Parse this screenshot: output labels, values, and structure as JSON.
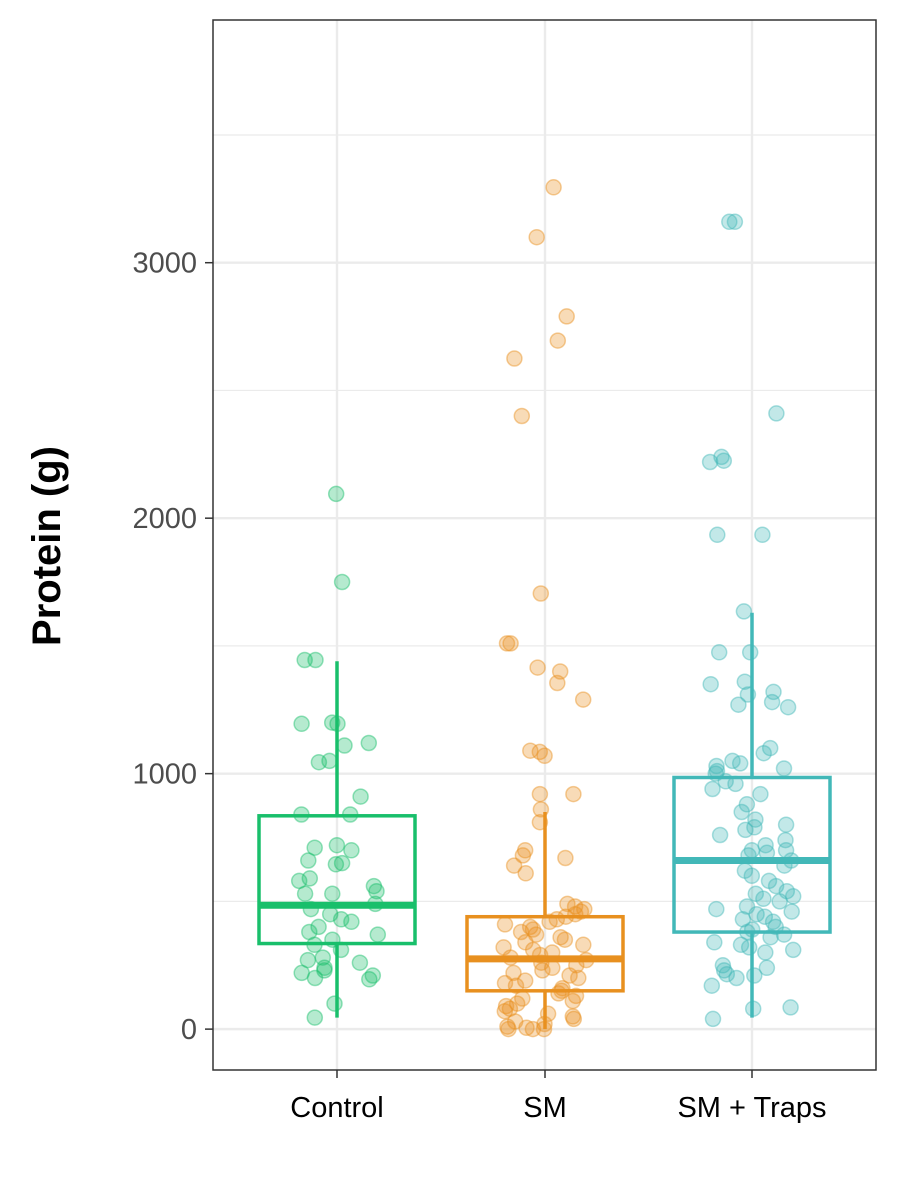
{
  "chart_data": {
    "type": "box",
    "title": "",
    "xlabel": "",
    "ylabel": "Protein (g)",
    "ylim": [
      -160,
      3950
    ],
    "yticks": [
      0,
      1000,
      2000,
      3000
    ],
    "ytick_labels": [
      "0",
      "1000",
      "2000",
      "3000"
    ],
    "grid": true,
    "legend": "none",
    "categories": [
      "Control",
      "SM",
      "SM + Traps"
    ],
    "colors": [
      "#19bf6b",
      "#e8901f",
      "#42b8b8"
    ],
    "boxes": [
      {
        "category": "Control",
        "whisker_low": 45,
        "q1": 335,
        "median": 485,
        "q3": 835,
        "whisker_high": 1440
      },
      {
        "category": "SM",
        "whisker_low": 0,
        "q1": 150,
        "median": 275,
        "q3": 440,
        "whisker_high": 850
      },
      {
        "category": "SM + Traps",
        "whisker_low": 45,
        "q1": 380,
        "median": 660,
        "q3": 985,
        "whisker_high": 1630
      }
    ],
    "points": [
      {
        "category": "Control",
        "values": [
          2095,
          1750,
          1445,
          1445,
          1200,
          1195,
          1195,
          1120,
          1110,
          1050,
          1045,
          910,
          840,
          840,
          720,
          710,
          700,
          660,
          650,
          645,
          590,
          580,
          560,
          540,
          530,
          530,
          490,
          470,
          450,
          430,
          420,
          400,
          380,
          370,
          350,
          330,
          310,
          280,
          270,
          260,
          240,
          230,
          220,
          210,
          200,
          195,
          100,
          45
        ]
      },
      {
        "category": "SM",
        "values": [
          3295,
          3100,
          2790,
          2695,
          2625,
          2400,
          1705,
          1510,
          1510,
          1415,
          1400,
          1355,
          1290,
          1090,
          1085,
          1070,
          920,
          920,
          860,
          810,
          700,
          680,
          670,
          640,
          610,
          490,
          480,
          470,
          460,
          450,
          440,
          430,
          420,
          410,
          400,
          390,
          380,
          370,
          360,
          350,
          340,
          330,
          320,
          310,
          300,
          290,
          280,
          270,
          260,
          250,
          240,
          230,
          220,
          210,
          200,
          190,
          180,
          170,
          160,
          150,
          140,
          130,
          120,
          110,
          100,
          90,
          80,
          70,
          60,
          50,
          40,
          30,
          20,
          10,
          5,
          0,
          0,
          0
        ]
      },
      {
        "category": "SM + Traps",
        "values": [
          3160,
          3160,
          2410,
          2240,
          2225,
          2220,
          1935,
          1935,
          1635,
          1475,
          1475,
          1360,
          1350,
          1320,
          1310,
          1280,
          1270,
          1260,
          1100,
          1080,
          1050,
          1040,
          1030,
          1020,
          1010,
          1000,
          970,
          960,
          940,
          920,
          880,
          850,
          820,
          800,
          790,
          780,
          760,
          740,
          720,
          700,
          700,
          690,
          680,
          660,
          640,
          620,
          600,
          580,
          560,
          540,
          530,
          520,
          510,
          500,
          480,
          470,
          460,
          450,
          440,
          430,
          420,
          400,
          390,
          380,
          370,
          360,
          340,
          330,
          320,
          310,
          300,
          250,
          240,
          230,
          215,
          210,
          200,
          170,
          85,
          80,
          40
        ]
      }
    ]
  }
}
